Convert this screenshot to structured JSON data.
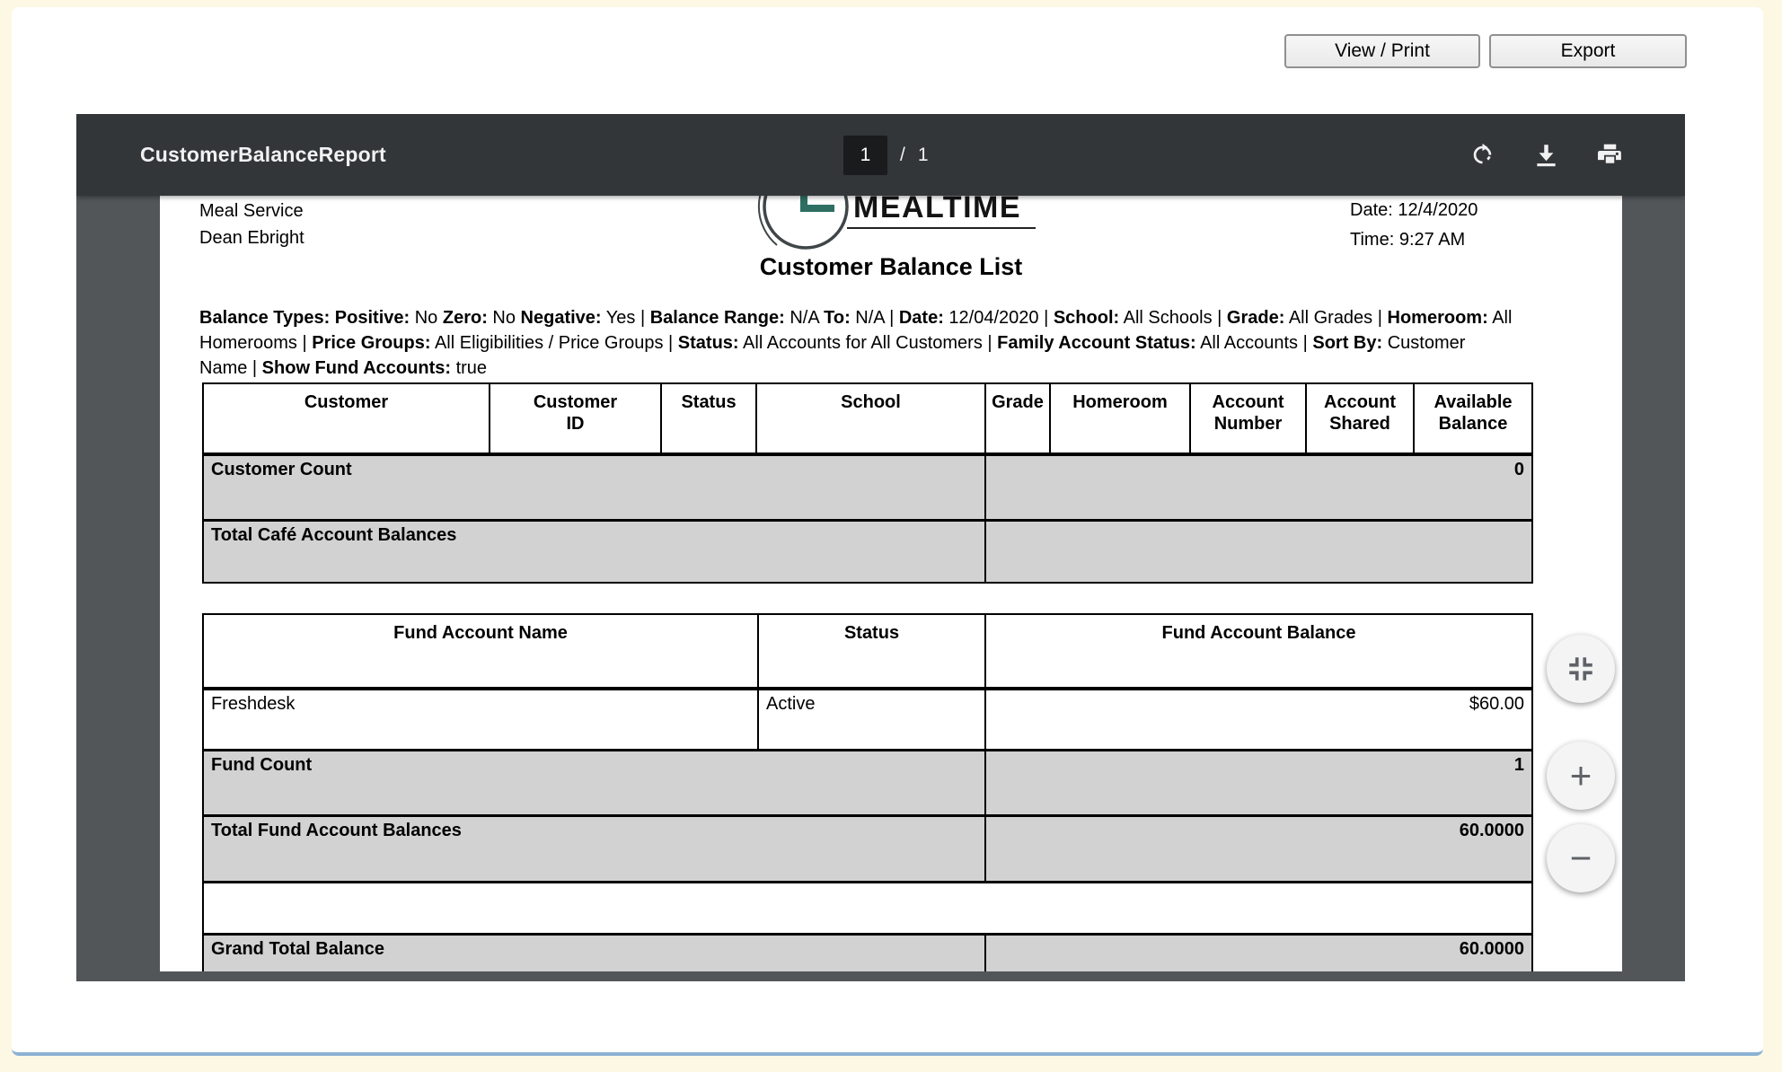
{
  "chrome": {
    "view_print": "View / Print",
    "export": "Export"
  },
  "viewer": {
    "title": "CustomerBalanceReport",
    "page_current": "1",
    "page_separator": "/",
    "page_total": "1",
    "icons": [
      "rotate-icon",
      "download-icon",
      "print-icon",
      "fit-page-icon",
      "zoom-in-icon",
      "zoom-out-icon"
    ],
    "zoom_in_glyph": "+",
    "zoom_out_glyph": "−"
  },
  "report": {
    "header": {
      "service_name": "Meal Service",
      "user_name": "Dean Ebright",
      "logo_text": "MEALTIME",
      "date_line": "Date: 12/4/2020",
      "time_line": "Time: 9:27 AM"
    },
    "title": "Customer Balance List",
    "filters": [
      {
        "b": "Balance Types: Positive:",
        "r": " No "
      },
      {
        "b": "Zero:",
        "r": " No "
      },
      {
        "b": "Negative:",
        "r": " Yes | "
      },
      {
        "b": "Balance Range:",
        "r": " N/A "
      },
      {
        "b": "To:",
        "r": " N/A | "
      },
      {
        "b": "Date:",
        "r": " 12/04/2020 | "
      },
      {
        "b": "School:",
        "r": " All Schools | "
      },
      {
        "b": "Grade:",
        "r": " All Grades | "
      },
      {
        "b": "Homeroom:",
        "r": " All Homerooms | "
      },
      {
        "b": "Price Groups:",
        "r": " All Eligibilities / Price Groups | "
      },
      {
        "b": "Status:",
        "r": " All Accounts for All Customers | "
      },
      {
        "b": "Family Account Status:",
        "r": " All Accounts | "
      },
      {
        "b": "Sort By:",
        "r": " Customer Name | "
      },
      {
        "b": "Show Fund Accounts:",
        "r": " true"
      }
    ],
    "customer_table": {
      "headers": [
        "Customer",
        "Customer\nID",
        "Status",
        "School",
        "Grade",
        "Homeroom",
        "Account\nNumber",
        "Account\nShared",
        "Available\nBalance"
      ],
      "summary_rows": [
        {
          "label": "Customer Count",
          "value": "0"
        },
        {
          "label": "Total Café Account Balances",
          "value": ""
        }
      ]
    },
    "fund_table": {
      "headers": [
        "Fund Account Name",
        "Status",
        "Fund Account Balance"
      ],
      "rows": [
        {
          "name": "Freshdesk",
          "status": "Active",
          "balance": "$60.00"
        }
      ],
      "summary_rows": [
        {
          "label": "Fund Count",
          "value": "1"
        },
        {
          "label": "Total Fund Account Balances",
          "value": "60.0000"
        }
      ]
    },
    "grand_total": {
      "label": "Grand Total Balance",
      "value": "60.0000"
    }
  },
  "colors": {
    "page_background_cream": "#fcf8e3",
    "toolbar_bg": "#323639",
    "viewer_bg": "#525659",
    "page_input_bg": "#191b1c",
    "summary_row_gray": "#d2d2d2",
    "logo_teal": "#2f6e63",
    "panel_bottom_line_blue": "#8cb2d4"
  }
}
